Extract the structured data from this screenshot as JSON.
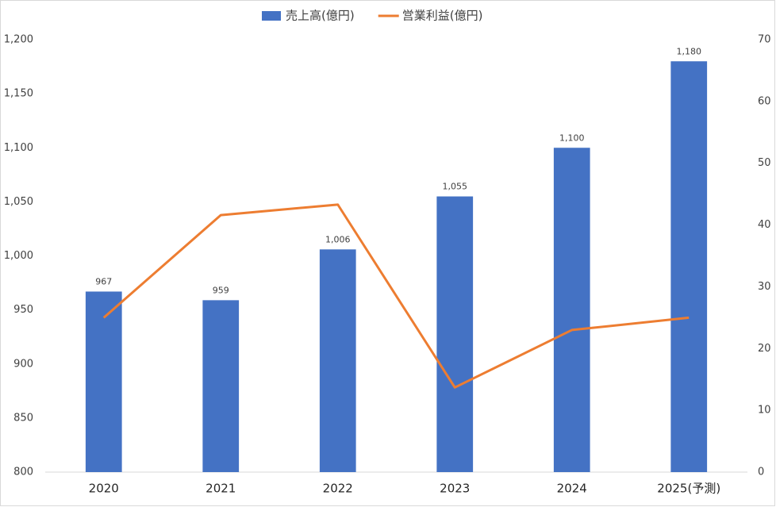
{
  "chart_data": {
    "type": "combo",
    "categories": [
      "2020",
      "2021",
      "2022",
      "2023",
      "2024",
      "2025(予測)"
    ],
    "series": [
      {
        "name": "売上高(億円)",
        "type": "bar",
        "color": "#4472c4",
        "values": [
          967,
          959,
          1006,
          1055,
          1100,
          1180
        ],
        "value_labels": [
          "967",
          "959",
          "1,006",
          "1,055",
          "1,100",
          "1,180"
        ]
      },
      {
        "name": "営業利益(億円)",
        "type": "line",
        "axis": "y2",
        "color": "#ed7d31",
        "values": [
          25.0,
          41.6,
          43.3,
          13.7,
          23.0,
          25.0
        ]
      }
    ],
    "ylim": [
      800,
      1200
    ],
    "yticks": [
      800,
      850,
      900,
      950,
      {
        "value": 1000,
        "label": "1,000"
      },
      {
        "value": 1050,
        "label": "1,050"
      },
      {
        "value": 1100,
        "label": "1,100"
      },
      {
        "value": 1150,
        "label": "1,150"
      },
      {
        "value": 1200,
        "label": "1,200"
      }
    ],
    "y2lim": [
      0,
      70
    ],
    "y2ticks": [
      0,
      10,
      20,
      30,
      40,
      50,
      60,
      70
    ],
    "grid": false,
    "legend": "top"
  }
}
